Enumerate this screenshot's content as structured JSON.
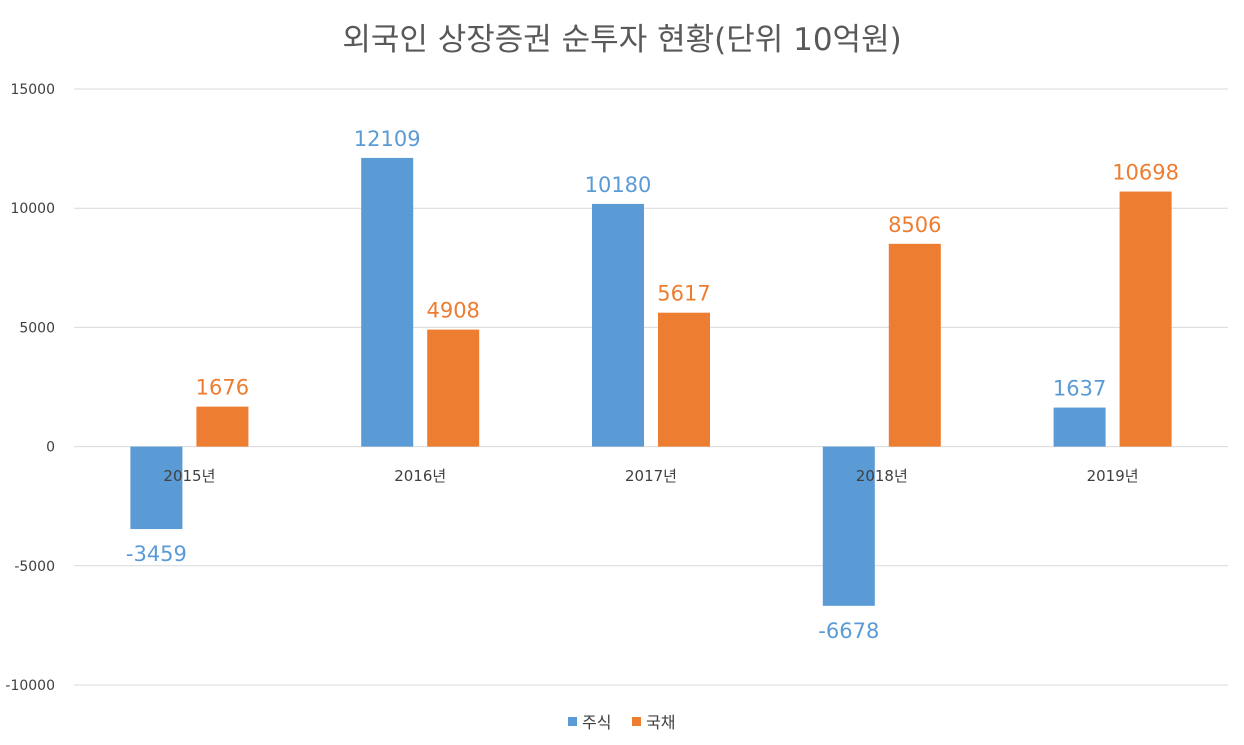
{
  "chart_data": {
    "type": "bar",
    "title": "외국인 상장증권 순투자 현황(단위 10억원)",
    "categories": [
      "2015년",
      "2016년",
      "2017년",
      "2018년",
      "2019년"
    ],
    "series": [
      {
        "name": "주식",
        "values": [
          -3459,
          12109,
          10180,
          -6678,
          1637
        ],
        "color": "#5B9BD5"
      },
      {
        "name": "국채",
        "values": [
          1676,
          4908,
          5617,
          8506,
          10698
        ],
        "color": "#ED7D31"
      }
    ],
    "yticks": [
      "-10000",
      "-5000",
      "0",
      "5000",
      "10000",
      "15000"
    ],
    "ylim": [
      -10000,
      15000
    ],
    "grid": true,
    "legend_position": "bottom",
    "data_labels": true
  },
  "style": {
    "gridline_color": "#D9D9D9",
    "title_color": "#595959",
    "axis_text_color": "#404040"
  }
}
